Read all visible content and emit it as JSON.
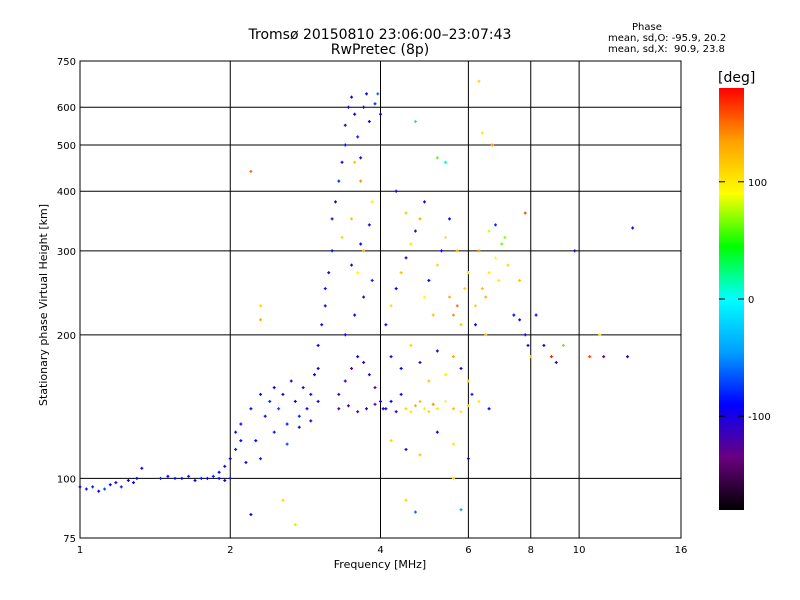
{
  "header": {
    "title_line1": "Tromsø 20150810 23:06:00–23:07:43",
    "title_line2": "RwPretec (8p)"
  },
  "phase_stats": {
    "title": "Phase",
    "o_line": "mean, sd,O: -95.9, 20.2",
    "x_line": "mean, sd,X:  90.9, 23.8"
  },
  "chart_data": {
    "type": "scatter",
    "title": "Tromsø 20150810 23:06:00–23:07:43",
    "subtitle": "RwPretec (8p)",
    "xlabel": "Frequency [MHz]",
    "ylabel": "Stationary phase Virtual Height [km]",
    "xscale": "log",
    "yscale": "log",
    "xlim": [
      1,
      16
    ],
    "ylim": [
      75,
      750
    ],
    "xticks": [
      1,
      2,
      4,
      6,
      8,
      10,
      16
    ],
    "xtick_labels": [
      "1",
      "2",
      "4",
      "6",
      "8",
      "10",
      "16"
    ],
    "yticks": [
      75,
      100,
      200,
      300,
      400,
      500,
      600,
      750
    ],
    "ytick_labels": [
      "75",
      "100",
      "200",
      "300",
      "400",
      "500",
      "600",
      "750"
    ],
    "grid": true,
    "color_scale": {
      "label": "[deg]",
      "ticks": [
        100,
        0,
        -100
      ],
      "tick_labels": [
        "100",
        "0",
        "-100"
      ],
      "range": [
        -180,
        180
      ]
    },
    "colorbar_stops": [
      "#000000",
      "#6a0080",
      "#0000ff",
      "#00a0ff",
      "#00ffff",
      "#00ff00",
      "#ffff00",
      "#ffa000",
      "#ff0000"
    ],
    "points": [
      {
        "x": 1.0,
        "y": 96,
        "c": -90
      },
      {
        "x": 1.03,
        "y": 95,
        "c": -85
      },
      {
        "x": 1.06,
        "y": 96,
        "c": -80
      },
      {
        "x": 1.09,
        "y": 94,
        "c": -95
      },
      {
        "x": 1.12,
        "y": 95,
        "c": -70
      },
      {
        "x": 1.15,
        "y": 97,
        "c": -90
      },
      {
        "x": 1.18,
        "y": 98,
        "c": -100
      },
      {
        "x": 1.21,
        "y": 96,
        "c": -80
      },
      {
        "x": 1.25,
        "y": 99,
        "c": -95
      },
      {
        "x": 1.28,
        "y": 98,
        "c": -85
      },
      {
        "x": 1.3,
        "y": 100,
        "c": -90
      },
      {
        "x": 1.33,
        "y": 105,
        "c": -100
      },
      {
        "x": 1.45,
        "y": 100,
        "c": -80
      },
      {
        "x": 1.5,
        "y": 101,
        "c": -90
      },
      {
        "x": 1.55,
        "y": 100,
        "c": -85
      },
      {
        "x": 1.6,
        "y": 100,
        "c": -95
      },
      {
        "x": 1.65,
        "y": 101,
        "c": -80
      },
      {
        "x": 1.7,
        "y": 99,
        "c": -90
      },
      {
        "x": 1.75,
        "y": 100,
        "c": -85
      },
      {
        "x": 1.8,
        "y": 100,
        "c": -100
      },
      {
        "x": 1.85,
        "y": 101,
        "c": -80
      },
      {
        "x": 1.9,
        "y": 100,
        "c": -90
      },
      {
        "x": 1.95,
        "y": 99,
        "c": -95
      },
      {
        "x": 2.0,
        "y": 100,
        "c": -85
      },
      {
        "x": 1.9,
        "y": 103,
        "c": -90
      },
      {
        "x": 1.95,
        "y": 106,
        "c": -100
      },
      {
        "x": 2.0,
        "y": 110,
        "c": -95
      },
      {
        "x": 2.05,
        "y": 115,
        "c": -80
      },
      {
        "x": 2.1,
        "y": 120,
        "c": -90
      },
      {
        "x": 2.05,
        "y": 125,
        "c": -85
      },
      {
        "x": 2.1,
        "y": 130,
        "c": -100
      },
      {
        "x": 2.15,
        "y": 108,
        "c": -95
      },
      {
        "x": 2.2,
        "y": 140,
        "c": -90
      },
      {
        "x": 2.3,
        "y": 150,
        "c": -85
      },
      {
        "x": 2.35,
        "y": 135,
        "c": -100
      },
      {
        "x": 2.4,
        "y": 145,
        "c": -80
      },
      {
        "x": 2.45,
        "y": 155,
        "c": -90
      },
      {
        "x": 2.5,
        "y": 140,
        "c": -70
      },
      {
        "x": 2.55,
        "y": 150,
        "c": -95
      },
      {
        "x": 2.6,
        "y": 130,
        "c": -85
      },
      {
        "x": 2.65,
        "y": 160,
        "c": -100
      },
      {
        "x": 2.7,
        "y": 145,
        "c": -90
      },
      {
        "x": 2.75,
        "y": 135,
        "c": -80
      },
      {
        "x": 2.8,
        "y": 155,
        "c": -110
      },
      {
        "x": 2.85,
        "y": 140,
        "c": -95
      },
      {
        "x": 2.9,
        "y": 150,
        "c": -85
      },
      {
        "x": 2.95,
        "y": 165,
        "c": -90
      },
      {
        "x": 3.0,
        "y": 145,
        "c": -100
      },
      {
        "x": 2.3,
        "y": 110,
        "c": -80
      },
      {
        "x": 2.25,
        "y": 120,
        "c": -90
      },
      {
        "x": 2.45,
        "y": 125,
        "c": -85
      },
      {
        "x": 2.6,
        "y": 118,
        "c": -70
      },
      {
        "x": 2.75,
        "y": 128,
        "c": -95
      },
      {
        "x": 2.9,
        "y": 132,
        "c": -100
      },
      {
        "x": 2.2,
        "y": 440,
        "c": 150
      },
      {
        "x": 2.3,
        "y": 230,
        "c": 110
      },
      {
        "x": 2.3,
        "y": 215,
        "c": 130
      },
      {
        "x": 2.2,
        "y": 84,
        "c": -90
      },
      {
        "x": 2.55,
        "y": 90,
        "c": 110
      },
      {
        "x": 2.7,
        "y": 80,
        "c": 80
      },
      {
        "x": 3.0,
        "y": 170,
        "c": -100
      },
      {
        "x": 3.0,
        "y": 190,
        "c": -90
      },
      {
        "x": 3.05,
        "y": 210,
        "c": -110
      },
      {
        "x": 3.1,
        "y": 230,
        "c": -95
      },
      {
        "x": 3.1,
        "y": 250,
        "c": -85
      },
      {
        "x": 3.15,
        "y": 270,
        "c": -100
      },
      {
        "x": 3.2,
        "y": 300,
        "c": -90
      },
      {
        "x": 3.2,
        "y": 350,
        "c": -110
      },
      {
        "x": 3.25,
        "y": 380,
        "c": -95
      },
      {
        "x": 3.3,
        "y": 420,
        "c": -80
      },
      {
        "x": 3.35,
        "y": 460,
        "c": -100
      },
      {
        "x": 3.4,
        "y": 500,
        "c": -90
      },
      {
        "x": 3.4,
        "y": 550,
        "c": -110
      },
      {
        "x": 3.45,
        "y": 600,
        "c": -100
      },
      {
        "x": 3.5,
        "y": 630,
        "c": -90
      },
      {
        "x": 3.55,
        "y": 580,
        "c": -95
      },
      {
        "x": 3.6,
        "y": 520,
        "c": -80
      },
      {
        "x": 3.65,
        "y": 470,
        "c": -110
      },
      {
        "x": 3.7,
        "y": 600,
        "c": -100
      },
      {
        "x": 3.75,
        "y": 640,
        "c": -90
      },
      {
        "x": 3.8,
        "y": 560,
        "c": -100
      },
      {
        "x": 3.9,
        "y": 610,
        "c": -80
      },
      {
        "x": 4.0,
        "y": 580,
        "c": -95
      },
      {
        "x": 3.95,
        "y": 640,
        "c": -60
      },
      {
        "x": 3.3,
        "y": 150,
        "c": -120
      },
      {
        "x": 3.4,
        "y": 160,
        "c": -110
      },
      {
        "x": 3.5,
        "y": 170,
        "c": -130
      },
      {
        "x": 3.6,
        "y": 180,
        "c": -100
      },
      {
        "x": 3.7,
        "y": 175,
        "c": -120
      },
      {
        "x": 3.8,
        "y": 165,
        "c": -110
      },
      {
        "x": 3.9,
        "y": 155,
        "c": -125
      },
      {
        "x": 4.0,
        "y": 145,
        "c": -100
      },
      {
        "x": 3.3,
        "y": 140,
        "c": -130
      },
      {
        "x": 3.45,
        "y": 142,
        "c": -120
      },
      {
        "x": 3.6,
        "y": 138,
        "c": -125
      },
      {
        "x": 3.75,
        "y": 140,
        "c": -110
      },
      {
        "x": 3.9,
        "y": 143,
        "c": -130
      },
      {
        "x": 4.05,
        "y": 140,
        "c": -105
      },
      {
        "x": 3.4,
        "y": 200,
        "c": -100
      },
      {
        "x": 3.55,
        "y": 220,
        "c": -90
      },
      {
        "x": 3.7,
        "y": 240,
        "c": -110
      },
      {
        "x": 3.85,
        "y": 260,
        "c": -80
      },
      {
        "x": 3.5,
        "y": 280,
        "c": -100
      },
      {
        "x": 3.65,
        "y": 310,
        "c": -95
      },
      {
        "x": 3.8,
        "y": 340,
        "c": -105
      },
      {
        "x": 3.35,
        "y": 320,
        "c": 110
      },
      {
        "x": 3.5,
        "y": 350,
        "c": 120
      },
      {
        "x": 3.6,
        "y": 270,
        "c": 90
      },
      {
        "x": 3.7,
        "y": 300,
        "c": 130
      },
      {
        "x": 3.85,
        "y": 380,
        "c": 100
      },
      {
        "x": 3.65,
        "y": 420,
        "c": 140
      },
      {
        "x": 3.55,
        "y": 460,
        "c": 120
      },
      {
        "x": 4.1,
        "y": 140,
        "c": -100
      },
      {
        "x": 4.2,
        "y": 145,
        "c": -90
      },
      {
        "x": 4.3,
        "y": 138,
        "c": -110
      },
      {
        "x": 4.4,
        "y": 150,
        "c": -100
      },
      {
        "x": 4.5,
        "y": 140,
        "c": 110
      },
      {
        "x": 4.6,
        "y": 138,
        "c": 100
      },
      {
        "x": 4.7,
        "y": 142,
        "c": 130
      },
      {
        "x": 4.8,
        "y": 145,
        "c": 120
      },
      {
        "x": 4.9,
        "y": 140,
        "c": 95
      },
      {
        "x": 5.0,
        "y": 138,
        "c": 110
      },
      {
        "x": 5.1,
        "y": 143,
        "c": 140
      },
      {
        "x": 5.2,
        "y": 140,
        "c": 100
      },
      {
        "x": 5.4,
        "y": 145,
        "c": 90
      },
      {
        "x": 5.6,
        "y": 140,
        "c": 120
      },
      {
        "x": 5.8,
        "y": 138,
        "c": 100
      },
      {
        "x": 6.0,
        "y": 142,
        "c": 110
      },
      {
        "x": 4.1,
        "y": 210,
        "c": -100
      },
      {
        "x": 4.2,
        "y": 230,
        "c": 110
      },
      {
        "x": 4.3,
        "y": 250,
        "c": -90
      },
      {
        "x": 4.4,
        "y": 270,
        "c": 120
      },
      {
        "x": 4.5,
        "y": 290,
        "c": -100
      },
      {
        "x": 4.6,
        "y": 310,
        "c": 100
      },
      {
        "x": 4.7,
        "y": 330,
        "c": -110
      },
      {
        "x": 4.8,
        "y": 350,
        "c": 130
      },
      {
        "x": 4.9,
        "y": 240,
        "c": 90
      },
      {
        "x": 5.0,
        "y": 260,
        "c": -90
      },
      {
        "x": 5.1,
        "y": 220,
        "c": 120
      },
      {
        "x": 5.2,
        "y": 280,
        "c": 110
      },
      {
        "x": 5.3,
        "y": 300,
        "c": -100
      },
      {
        "x": 5.4,
        "y": 320,
        "c": 100
      },
      {
        "x": 5.5,
        "y": 240,
        "c": 130
      },
      {
        "x": 5.6,
        "y": 220,
        "c": 140
      },
      {
        "x": 5.7,
        "y": 230,
        "c": 150
      },
      {
        "x": 5.8,
        "y": 210,
        "c": 120
      },
      {
        "x": 5.9,
        "y": 250,
        "c": 110
      },
      {
        "x": 6.0,
        "y": 270,
        "c": 100
      },
      {
        "x": 4.2,
        "y": 180,
        "c": -100
      },
      {
        "x": 4.4,
        "y": 170,
        "c": -90
      },
      {
        "x": 4.6,
        "y": 190,
        "c": 110
      },
      {
        "x": 4.8,
        "y": 175,
        "c": -110
      },
      {
        "x": 5.0,
        "y": 160,
        "c": 120
      },
      {
        "x": 5.2,
        "y": 185,
        "c": -95
      },
      {
        "x": 5.4,
        "y": 165,
        "c": 100
      },
      {
        "x": 5.6,
        "y": 180,
        "c": 130
      },
      {
        "x": 5.8,
        "y": 170,
        "c": -100
      },
      {
        "x": 6.0,
        "y": 160,
        "c": 110
      },
      {
        "x": 4.3,
        "y": 400,
        "c": -90
      },
      {
        "x": 4.5,
        "y": 360,
        "c": 120
      },
      {
        "x": 4.7,
        "y": 560,
        "c": 20
      },
      {
        "x": 4.9,
        "y": 380,
        "c": -100
      },
      {
        "x": 5.2,
        "y": 470,
        "c": 60
      },
      {
        "x": 5.4,
        "y": 460,
        "c": 10
      },
      {
        "x": 5.5,
        "y": 350,
        "c": -90
      },
      {
        "x": 5.7,
        "y": 300,
        "c": 130
      },
      {
        "x": 4.2,
        "y": 120,
        "c": 110
      },
      {
        "x": 4.5,
        "y": 115,
        "c": -100
      },
      {
        "x": 4.8,
        "y": 112,
        "c": 120
      },
      {
        "x": 5.2,
        "y": 125,
        "c": -90
      },
      {
        "x": 5.6,
        "y": 118,
        "c": 100
      },
      {
        "x": 6.0,
        "y": 110,
        "c": -100
      },
      {
        "x": 4.5,
        "y": 90,
        "c": 110
      },
      {
        "x": 4.7,
        "y": 85,
        "c": -60
      },
      {
        "x": 5.6,
        "y": 100,
        "c": 110
      },
      {
        "x": 5.8,
        "y": 86,
        "c": -40
      },
      {
        "x": 6.2,
        "y": 230,
        "c": 110
      },
      {
        "x": 6.4,
        "y": 250,
        "c": 120
      },
      {
        "x": 6.6,
        "y": 270,
        "c": 100
      },
      {
        "x": 6.8,
        "y": 290,
        "c": 90
      },
      {
        "x": 7.0,
        "y": 310,
        "c": 60
      },
      {
        "x": 7.2,
        "y": 280,
        "c": 110
      },
      {
        "x": 7.4,
        "y": 220,
        "c": -90
      },
      {
        "x": 7.6,
        "y": 215,
        "c": -100
      },
      {
        "x": 6.5,
        "y": 240,
        "c": 130
      },
      {
        "x": 6.9,
        "y": 260,
        "c": 100
      },
      {
        "x": 7.1,
        "y": 320,
        "c": 70
      },
      {
        "x": 6.3,
        "y": 300,
        "c": 140
      },
      {
        "x": 6.6,
        "y": 330,
        "c": 80
      },
      {
        "x": 6.8,
        "y": 340,
        "c": -80
      },
      {
        "x": 6.2,
        "y": 210,
        "c": -100
      },
      {
        "x": 6.5,
        "y": 200,
        "c": 120
      },
      {
        "x": 6.3,
        "y": 680,
        "c": 110
      },
      {
        "x": 6.4,
        "y": 530,
        "c": 100
      },
      {
        "x": 6.7,
        "y": 500,
        "c": 140
      },
      {
        "x": 6.1,
        "y": 150,
        "c": -80
      },
      {
        "x": 6.3,
        "y": 145,
        "c": 100
      },
      {
        "x": 6.6,
        "y": 140,
        "c": -90
      },
      {
        "x": 7.6,
        "y": 260,
        "c": 120
      },
      {
        "x": 7.8,
        "y": 200,
        "c": -100
      },
      {
        "x": 7.8,
        "y": 360,
        "c": 160
      },
      {
        "x": 7.9,
        "y": 190,
        "c": -100
      },
      {
        "x": 8.0,
        "y": 180,
        "c": 110
      },
      {
        "x": 8.5,
        "y": 190,
        "c": -90
      },
      {
        "x": 8.8,
        "y": 180,
        "c": 170
      },
      {
        "x": 9.0,
        "y": 175,
        "c": -110
      },
      {
        "x": 9.3,
        "y": 190,
        "c": 60
      },
      {
        "x": 9.8,
        "y": 300,
        "c": -100
      },
      {
        "x": 10.5,
        "y": 180,
        "c": 160
      },
      {
        "x": 11.2,
        "y": 180,
        "c": -130
      },
      {
        "x": 12.5,
        "y": 180,
        "c": -110
      },
      {
        "x": 12.8,
        "y": 335,
        "c": -100
      },
      {
        "x": 11.0,
        "y": 200,
        "c": 100
      },
      {
        "x": 8.2,
        "y": 220,
        "c": -100
      }
    ]
  }
}
